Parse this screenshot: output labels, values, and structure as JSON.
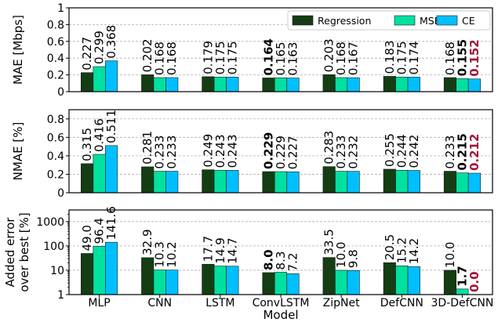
{
  "chart_data": [
    {
      "type": "bar",
      "panel": "mae",
      "ylabel": "MAE [Mbps]",
      "ylim": [
        0,
        1
      ],
      "yscale": "linear",
      "yticks": [
        0,
        0.2,
        0.4,
        0.6,
        0.8,
        1
      ],
      "ytick_labels": [
        "0",
        "0.2",
        "0.4",
        "0.6",
        "0.8",
        "1"
      ],
      "grid": "horizontal dashed",
      "legend": "top-right",
      "categories": [
        "MLP",
        "CNN",
        "LSTM",
        "ConvLSTM",
        "ZipNet",
        "DefCNN",
        "3D-DefCNN"
      ],
      "series": [
        {
          "name": "Regression",
          "values": [
            0.227,
            0.202,
            0.179,
            0.164,
            0.203,
            0.183,
            0.168
          ],
          "labels": [
            "0.227",
            "0.202",
            "0.179",
            "0.164",
            "0.203",
            "0.183",
            "0.168"
          ]
        },
        {
          "name": "MSE",
          "values": [
            0.299,
            0.168,
            0.175,
            0.165,
            0.168,
            0.175,
            0.155
          ],
          "labels": [
            "0.299",
            "0.168",
            "0.175",
            "0.165",
            "0.168",
            "0.175",
            "0.155"
          ]
        },
        {
          "name": "CE",
          "values": [
            0.368,
            0.168,
            0.175,
            0.163,
            0.167,
            0.174,
            0.152
          ],
          "labels": [
            "0.368",
            "0.168",
            "0.175",
            "0.163",
            "0.167",
            "0.174",
            "0.152"
          ]
        }
      ],
      "emphasis": {
        "bold": [
          [
            0,
            3
          ],
          [
            1,
            6
          ]
        ],
        "highlight": [
          [
            2,
            6
          ]
        ]
      }
    },
    {
      "type": "bar",
      "panel": "nmae",
      "ylabel": "NMAE [%]",
      "ylim": [
        0,
        0.9
      ],
      "yscale": "linear",
      "yticks": [
        0,
        0.2,
        0.4,
        0.6,
        0.8
      ],
      "ytick_labels": [
        "0",
        "0.2",
        "0.4",
        "0.6",
        "0.8"
      ],
      "grid": "horizontal dashed",
      "categories": [
        "MLP",
        "CNN",
        "LSTM",
        "ConvLSTM",
        "ZipNet",
        "DefCNN",
        "3D-DefCNN"
      ],
      "series": [
        {
          "name": "Regression",
          "values": [
            0.315,
            0.281,
            0.249,
            0.229,
            0.283,
            0.255,
            0.233
          ],
          "labels": [
            "0.315",
            "0.281",
            "0.249",
            "0.229",
            "0.283",
            "0.255",
            "0.233"
          ]
        },
        {
          "name": "MSE",
          "values": [
            0.416,
            0.233,
            0.243,
            0.229,
            0.233,
            0.244,
            0.215
          ],
          "labels": [
            "0.416",
            "0.233",
            "0.243",
            "0.229",
            "0.233",
            "0.244",
            "0.215"
          ]
        },
        {
          "name": "CE",
          "values": [
            0.511,
            0.233,
            0.243,
            0.227,
            0.232,
            0.242,
            0.212
          ],
          "labels": [
            "0.511",
            "0.233",
            "0.243",
            "0.227",
            "0.232",
            "0.242",
            "0.212"
          ]
        }
      ],
      "emphasis": {
        "bold": [
          [
            0,
            3
          ],
          [
            1,
            6
          ]
        ],
        "highlight": [
          [
            2,
            6
          ]
        ]
      }
    },
    {
      "type": "bar",
      "panel": "added",
      "ylabel": [
        "Added error",
        "over best [%]"
      ],
      "ylim": [
        1,
        3000
      ],
      "yscale": "log",
      "yticks": [
        1,
        10,
        100,
        1000
      ],
      "ytick_labels": [
        "1",
        "10",
        "100",
        "1000"
      ],
      "grid": "horizontal dashed",
      "xlabel": "Model",
      "categories": [
        "MLP",
        "CNN",
        "LSTM",
        "ConvLSTM",
        "ZipNet",
        "DefCNN",
        "3D-DefCNN"
      ],
      "series": [
        {
          "name": "Regression",
          "values": [
            49.0,
            32.9,
            17.7,
            8.0,
            33.5,
            20.5,
            10.0
          ],
          "labels": [
            "49.0",
            "32.9",
            "17.7",
            "8.0",
            "33.5",
            "20.5",
            "10.0"
          ]
        },
        {
          "name": "MSE",
          "values": [
            96.4,
            10.3,
            14.9,
            8.3,
            10.0,
            15.2,
            1.7
          ],
          "labels": [
            "96.4",
            "10.3",
            "14.9",
            "8.3",
            "10.0",
            "15.2",
            "1.7"
          ]
        },
        {
          "name": "CE",
          "values": [
            141.6,
            10.2,
            14.7,
            7.2,
            9.8,
            14.2,
            0.0
          ],
          "labels": [
            "141.6",
            "10.2",
            "14.7",
            "7.2",
            "9.8",
            "14.2",
            "0.0"
          ]
        }
      ],
      "emphasis": {
        "bold": [
          [
            0,
            3
          ],
          [
            1,
            6
          ]
        ],
        "highlight": [
          [
            2,
            6
          ]
        ]
      }
    }
  ],
  "colors": {
    "Regression": "#143d14",
    "MSE": "#00e0a0",
    "CE": "#00bfff",
    "highlight_text": "#a3143a",
    "grid": "#b0b0b0",
    "axis": "#000000"
  }
}
